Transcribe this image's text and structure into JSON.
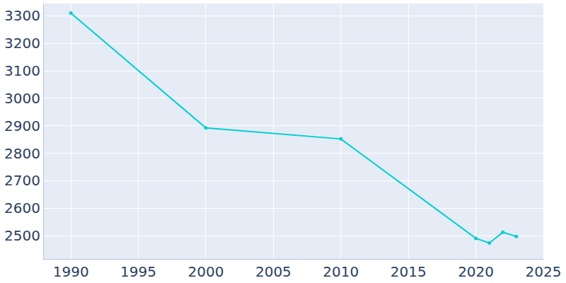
{
  "chart_data": {
    "type": "line",
    "x": [
      1990,
      2000,
      2010,
      2020,
      2021,
      2022,
      2023
    ],
    "values": [
      3310,
      2892,
      2852,
      2490,
      2473,
      2512,
      2497
    ],
    "color": "#00ced1",
    "marker": "circle",
    "xlim": [
      1988,
      2025
    ],
    "xticks": [
      1990,
      1995,
      2000,
      2005,
      2010,
      2015,
      2020,
      2025
    ],
    "ylim": [
      2415,
      3345
    ],
    "yticks": [
      2500,
      2600,
      2700,
      2800,
      2900,
      3000,
      3100,
      3200,
      3300
    ],
    "grid": true
  }
}
